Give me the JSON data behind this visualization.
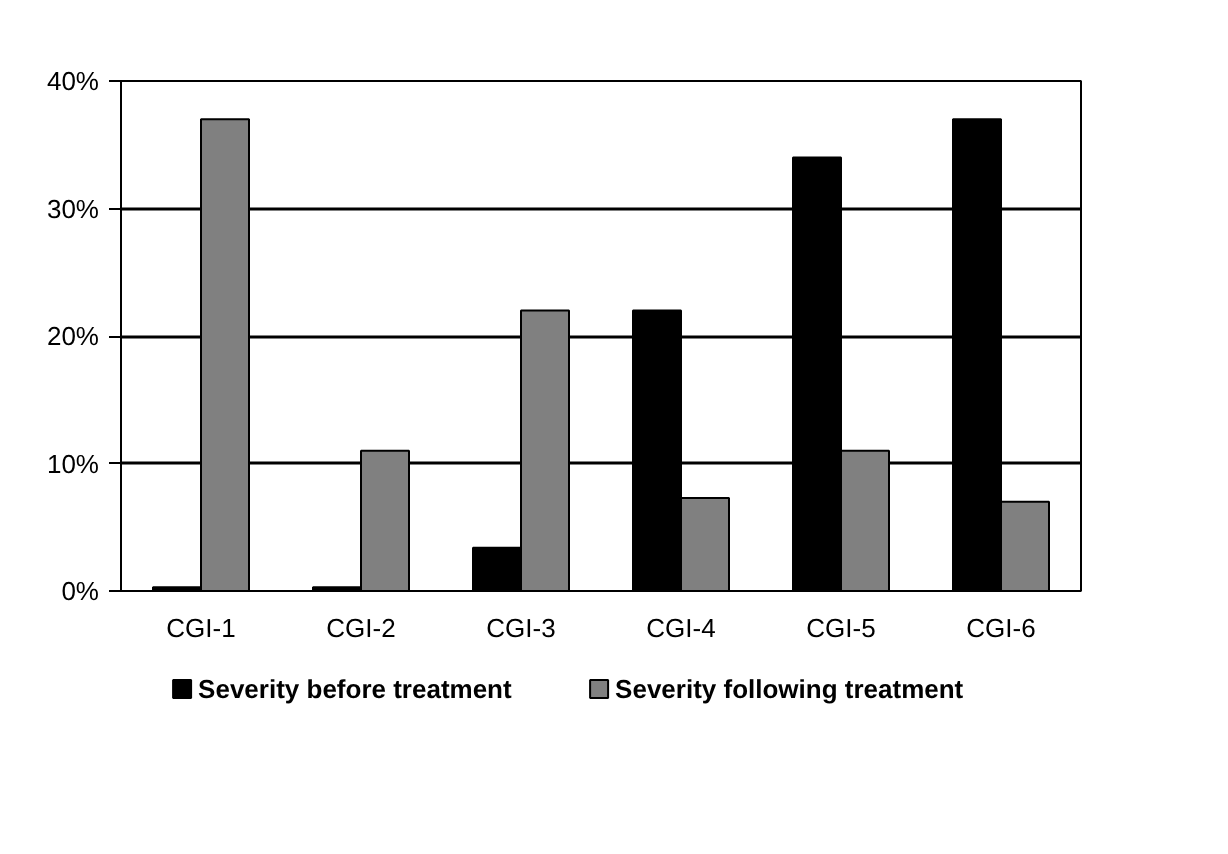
{
  "chart_data": {
    "type": "bar",
    "categories": [
      "CGI-1",
      "CGI-2",
      "CGI-3",
      "CGI-4",
      "CGI-5",
      "CGI-6"
    ],
    "series": [
      {
        "name": "Severity before treatment",
        "color": "#000000",
        "values": [
          0.3,
          0.3,
          3.4,
          22,
          34,
          37
        ]
      },
      {
        "name": "Severity following treatment",
        "color": "#808080",
        "values": [
          37,
          11,
          22,
          7.3,
          11,
          7
        ]
      }
    ],
    "ylim": [
      0,
      40
    ],
    "yticks": [
      {
        "value": 0,
        "label": "0%"
      },
      {
        "value": 10,
        "label": "10%"
      },
      {
        "value": 20,
        "label": "20%"
      },
      {
        "value": 30,
        "label": "30%"
      },
      {
        "value": 40,
        "label": "40%"
      }
    ],
    "grid": "y",
    "legend": "bottom"
  }
}
